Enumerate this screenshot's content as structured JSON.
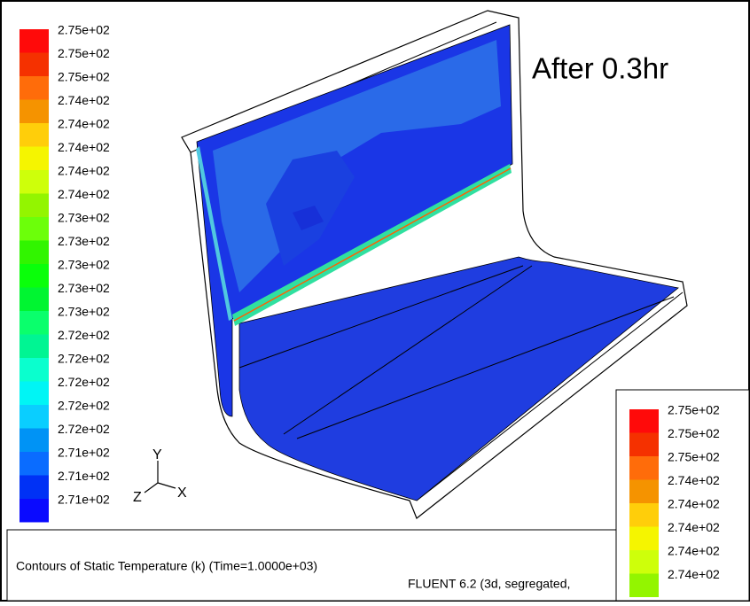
{
  "legend": {
    "labels": [
      "2.75e+02",
      "2.75e+02",
      "2.75e+02",
      "2.74e+02",
      "2.74e+02",
      "2.74e+02",
      "2.74e+02",
      "2.74e+02",
      "2.73e+02",
      "2.73e+02",
      "2.73e+02",
      "2.73e+02",
      "2.73e+02",
      "2.72e+02",
      "2.72e+02",
      "2.72e+02",
      "2.72e+02",
      "2.72e+02",
      "2.71e+02",
      "2.71e+02",
      "2.71e+02"
    ]
  },
  "inset_legend": {
    "labels": [
      "2.75e+02",
      "2.75e+02",
      "2.75e+02",
      "2.74e+02",
      "2.74e+02",
      "2.74e+02",
      "2.74e+02",
      "2.74e+02"
    ]
  },
  "annotation": "After 0.3hr",
  "axes": {
    "y": "Y",
    "z": "Z",
    "x": "X"
  },
  "caption": "Contours of Static Temperature (k)  (Time=1.0000e+03)",
  "solver": "FLUENT 6.2 (3d, segregated,"
}
